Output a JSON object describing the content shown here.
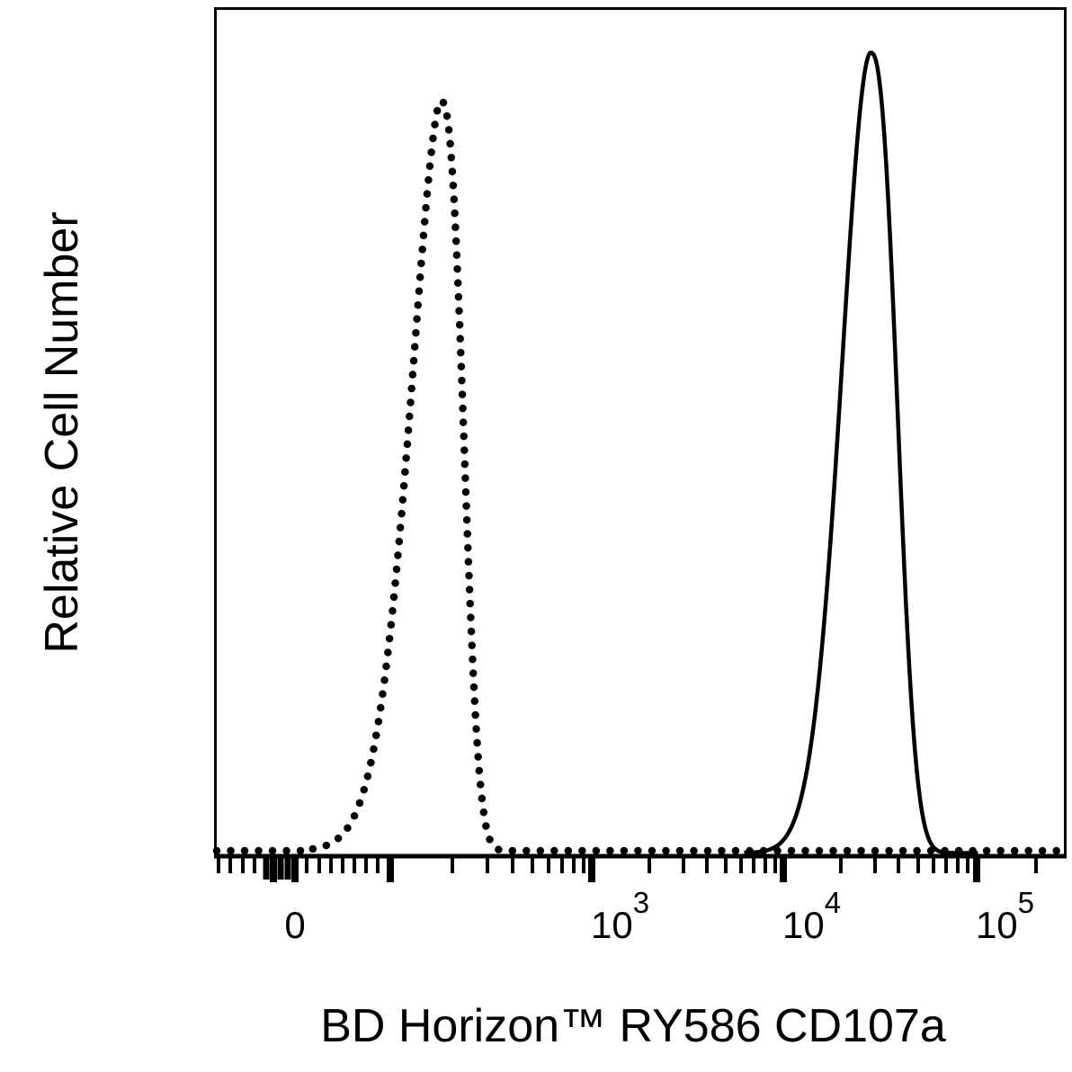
{
  "figure": {
    "background_color": "#ffffff",
    "foreground_color": "#000000"
  },
  "chart_data": {
    "type": "line",
    "subtype": "flow-cytometry-histogram-overlay",
    "title": "",
    "xlabel": "BD Horizon™ RY586 CD107a",
    "ylabel": "Relative Cell Number",
    "x_scale": "biexponential (logicle)",
    "y_scale": "relative count (unlabeled)",
    "grid": false,
    "legend": null,
    "ylim": [
      0,
      1
    ],
    "x_tick_labels": [
      {
        "text": "0",
        "base": "0",
        "exp": null,
        "u": 0.0941,
        "align": "middle"
      },
      {
        "text": "10^3",
        "base": "10",
        "exp": "3",
        "u": 0.4429,
        "align": "start"
      },
      {
        "text": "10^4",
        "base": "10",
        "exp": "4",
        "u": 0.6681,
        "align": "start"
      },
      {
        "text": "10^5",
        "base": "10",
        "exp": "5",
        "u": 0.8953,
        "align": "start"
      }
    ],
    "axis_ticks": [
      {
        "u": 0.0042,
        "kind": "short"
      },
      {
        "u": 0.018,
        "kind": "short"
      },
      {
        "u": 0.0328,
        "kind": "short"
      },
      {
        "u": 0.0465,
        "kind": "short"
      },
      {
        "u": 0.0603,
        "kind": "long"
      },
      {
        "u": 0.0687,
        "kind": "major"
      },
      {
        "u": 0.0772,
        "kind": "long"
      },
      {
        "u": 0.0856,
        "kind": "long"
      },
      {
        "u": 0.0941,
        "kind": "major"
      },
      {
        "u": 0.1078,
        "kind": "short"
      },
      {
        "u": 0.1226,
        "kind": "short"
      },
      {
        "u": 0.1364,
        "kind": "short"
      },
      {
        "u": 0.1501,
        "kind": "short"
      },
      {
        "u": 0.1639,
        "kind": "short"
      },
      {
        "u": 0.1776,
        "kind": "short"
      },
      {
        "u": 0.1913,
        "kind": "short"
      },
      {
        "u": 0.2061,
        "kind": "major"
      },
      {
        "u": 0.2791,
        "kind": "short"
      },
      {
        "u": 0.3203,
        "kind": "short"
      },
      {
        "u": 0.3499,
        "kind": "short"
      },
      {
        "u": 0.3732,
        "kind": "short"
      },
      {
        "u": 0.3922,
        "kind": "short"
      },
      {
        "u": 0.408,
        "kind": "short"
      },
      {
        "u": 0.4218,
        "kind": "short"
      },
      {
        "u": 0.4334,
        "kind": "short"
      },
      {
        "u": 0.4429,
        "kind": "major"
      },
      {
        "u": 0.5106,
        "kind": "short"
      },
      {
        "u": 0.5507,
        "kind": "short"
      },
      {
        "u": 0.5782,
        "kind": "short"
      },
      {
        "u": 0.6004,
        "kind": "short"
      },
      {
        "u": 0.6184,
        "kind": "short"
      },
      {
        "u": 0.6332,
        "kind": "short"
      },
      {
        "u": 0.6469,
        "kind": "short"
      },
      {
        "u": 0.6586,
        "kind": "short"
      },
      {
        "u": 0.6681,
        "kind": "major"
      },
      {
        "u": 0.7357,
        "kind": "short"
      },
      {
        "u": 0.7759,
        "kind": "short"
      },
      {
        "u": 0.8034,
        "kind": "short"
      },
      {
        "u": 0.8266,
        "kind": "short"
      },
      {
        "u": 0.8446,
        "kind": "short"
      },
      {
        "u": 0.8594,
        "kind": "short"
      },
      {
        "u": 0.8731,
        "kind": "short"
      },
      {
        "u": 0.8848,
        "kind": "short"
      },
      {
        "u": 0.8953,
        "kind": "major"
      },
      {
        "u": 0.9651,
        "kind": "short"
      }
    ],
    "series": [
      {
        "name": "dotted histogram (left peak)",
        "line_style": "dotted",
        "color": "#000000",
        "peak": {
          "center_u": 0.2654,
          "height_frac": 0.89,
          "approx_x_value": "1.7e2"
        },
        "shape": {
          "sigma_left_u": 0.0349,
          "p_left": 1.7,
          "sigma_right_u": 0.0254,
          "p_right": 2.6
        },
        "baseline_full_width": true
      },
      {
        "name": "solid histogram (right peak)",
        "line_style": "solid",
        "color": "#000000",
        "peak": {
          "center_u": 0.7707,
          "height_frac": 0.95,
          "approx_x_value": "2.9e4"
        },
        "shape": {
          "sigma_left_u": 0.0338,
          "p_left": 1.9,
          "sigma_right_u": 0.0296,
          "p_right": 2.5
        },
        "baseline_full_width": false
      }
    ]
  }
}
